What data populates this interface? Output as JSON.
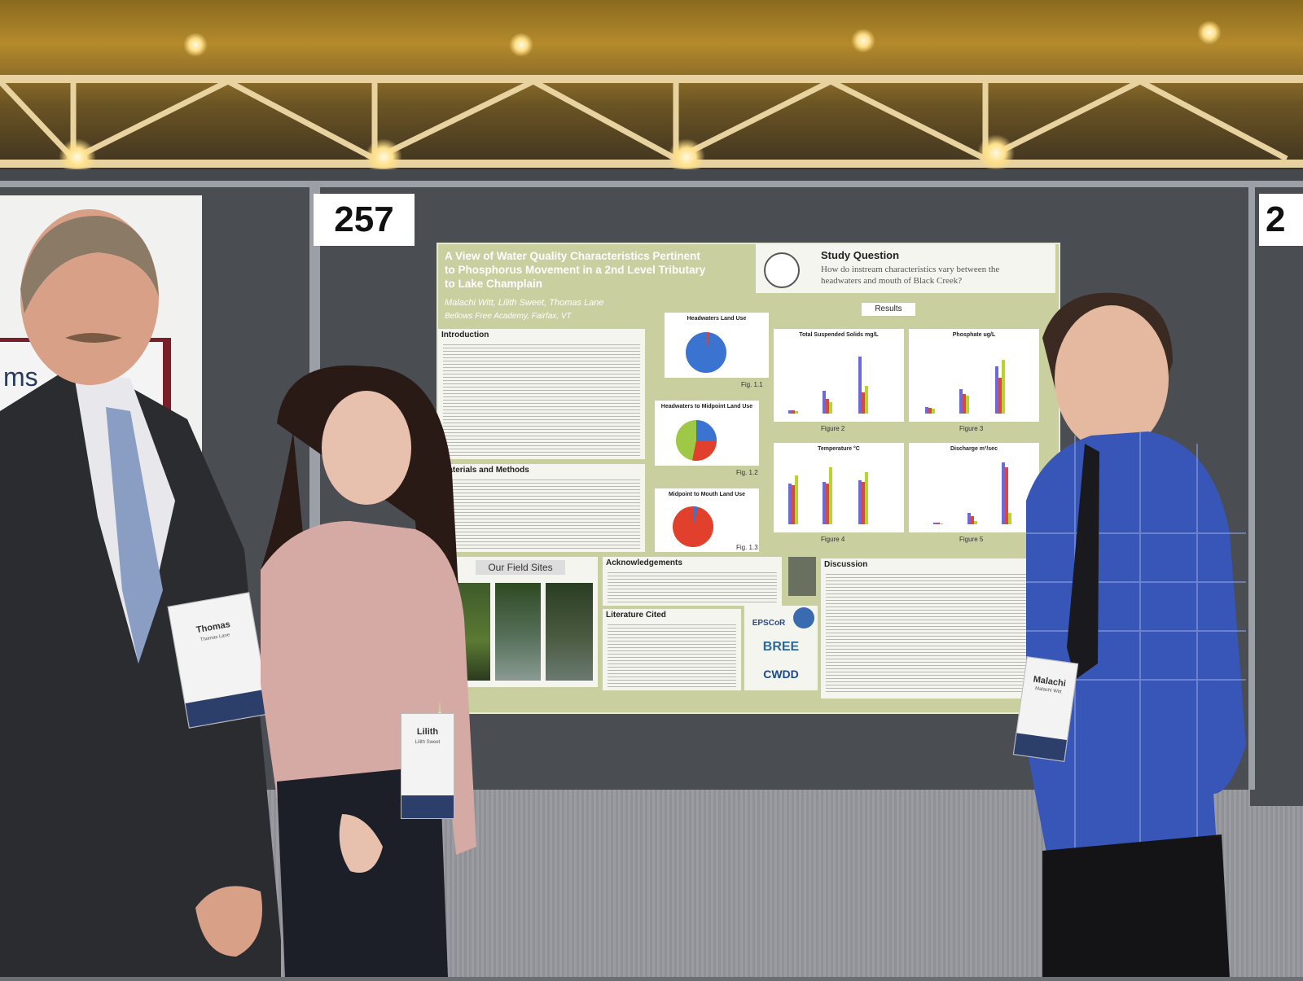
{
  "booth": {
    "number": "257",
    "number_right": "2"
  },
  "left_poster_fragment": "ms",
  "poster": {
    "title_line1": "A View of Water Quality Characteristics Pertinent",
    "title_line2": "to Phosphorus Movement in a 2nd Level Tributary",
    "title_line3": "to Lake Champlain",
    "authors": "Malachi Witt, Lilith Sweet, Thomas Lane",
    "affiliation": "Bellows Free Academy, Fairfax, VT",
    "study_question_heading": "Study Question",
    "study_question": "How do instream characteristics vary between the headwaters and mouth of Black Creek?",
    "sections": {
      "introduction": "Introduction",
      "materials": "Materials and Methods",
      "field_sites": "Our Field Sites",
      "acknowledgements": "Acknowledgements",
      "literature": "Literature Cited",
      "results": "Results",
      "discussion": "Discussion"
    },
    "pie_charts": [
      {
        "title": "Headwaters Land Use",
        "figure": "Fig. 1.1"
      },
      {
        "title": "Headwaters to Midpoint Land Use",
        "figure": "Fig. 1.2"
      },
      {
        "title": "Midpoint to Mouth Land Use",
        "figure": "Fig. 1.3"
      }
    ],
    "bar_charts": [
      {
        "title": "Total Suspended Solids mg/L",
        "figure": "Figure 2"
      },
      {
        "title": "Phosphate ug/L",
        "figure": "Figure 3"
      },
      {
        "title": "Temperature °C",
        "figure": "Figure 4"
      },
      {
        "title": "Discharge m³/sec",
        "figure": "Figure 5"
      }
    ],
    "logos": [
      "EPSCoR",
      "BREE",
      "CWDD"
    ]
  },
  "badges": [
    {
      "name": "Thomas",
      "sub": "Thomas Lane"
    },
    {
      "name": "Lilith",
      "sub": "Lilith Sweet"
    },
    {
      "name": "Malachi",
      "sub": "Malachi Witt"
    }
  ],
  "colors": {
    "poster_bg": "#c9cf9f",
    "series_blue": "#6a6ad8",
    "series_red": "#d8464a",
    "series_green": "#b7d430",
    "pie_blue": "#3b74d0",
    "pie_red": "#e0402c",
    "pie_green": "#9ec845"
  }
}
